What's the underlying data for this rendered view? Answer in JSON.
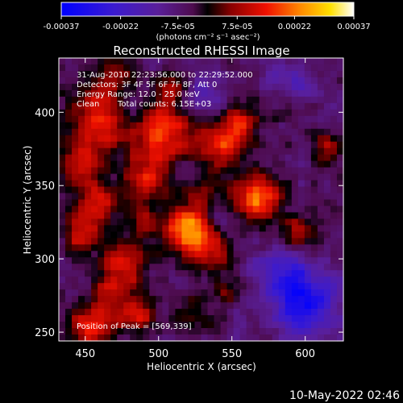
{
  "chart_data": {
    "type": "heatmap",
    "title": "Reconstructed RHESSI Image",
    "xlabel": "Heliocentric X (arcsec)",
    "ylabel": "Heliocentric Y (arcsec)",
    "xlim": [
      432,
      626
    ],
    "ylim": [
      244,
      437
    ],
    "x_ticks": [
      450,
      500,
      550,
      600
    ],
    "y_ticks": [
      250,
      300,
      350,
      400
    ],
    "colorbar": {
      "range": [
        -0.00037,
        0.00037
      ],
      "tick_values": [
        -0.00037,
        -0.00022,
        -7.5e-05,
        7.5e-05,
        0.00022,
        0.00037
      ],
      "tick_labels": [
        "-0.00037",
        "-0.00022",
        "-7.5e-05",
        "7.5e-05",
        "0.00022",
        "0.00037"
      ],
      "unit_label": "(photons cm⁻² s⁻¹ asec⁻²)"
    },
    "annotations": {
      "time_range": "31-Aug-2010 22:23:56.000 to 22:29:52.000",
      "detectors": "Detectors: 3F 4F 5F 6F 7F 8F, Att 0",
      "energy": "Energy Range: 12.0 - 25.0 keV",
      "method": "Clean",
      "counts": "Total counts: 6.15E+03",
      "peak": "Position of Peak = [569,339]"
    },
    "peak_position": [
      569,
      339
    ],
    "blobs": [
      {
        "x": 520,
        "y": 320,
        "a": 3.6,
        "s": 11
      },
      {
        "x": 567,
        "y": 342,
        "a": 3.2,
        "s": 11
      },
      {
        "x": 543,
        "y": 377,
        "a": 2.4,
        "s": 11
      },
      {
        "x": 556,
        "y": 393,
        "a": 2.0,
        "s": 8
      },
      {
        "x": 505,
        "y": 388,
        "a": 2.4,
        "s": 14
      },
      {
        "x": 492,
        "y": 356,
        "a": 2.0,
        "s": 12
      },
      {
        "x": 460,
        "y": 395,
        "a": 2.4,
        "s": 15
      },
      {
        "x": 447,
        "y": 365,
        "a": 1.8,
        "s": 10
      },
      {
        "x": 458,
        "y": 338,
        "a": 2.2,
        "s": 10
      },
      {
        "x": 447,
        "y": 318,
        "a": 1.8,
        "s": 9
      },
      {
        "x": 478,
        "y": 300,
        "a": 1.8,
        "s": 11
      },
      {
        "x": 470,
        "y": 280,
        "a": 1.6,
        "s": 10
      },
      {
        "x": 455,
        "y": 255,
        "a": 2.4,
        "s": 11
      },
      {
        "x": 485,
        "y": 262,
        "a": 1.8,
        "s": 9
      },
      {
        "x": 535,
        "y": 305,
        "a": 1.6,
        "s": 10
      },
      {
        "x": 597,
        "y": 318,
        "a": 1.8,
        "s": 8
      },
      {
        "x": 615,
        "y": 375,
        "a": 1.6,
        "s": 8
      },
      {
        "x": 532,
        "y": 345,
        "a": 1.2,
        "s": 8
      },
      {
        "x": 470,
        "y": 425,
        "a": 1.2,
        "s": 10
      },
      {
        "x": 508,
        "y": 418,
        "a": 1.2,
        "s": 8
      },
      {
        "x": 522,
        "y": 262,
        "a": 1.0,
        "s": 9
      },
      {
        "x": 548,
        "y": 278,
        "a": 0.8,
        "s": 8
      },
      {
        "x": 588,
        "y": 405,
        "a": 0.8,
        "s": 8
      },
      {
        "x": 488,
        "y": 326,
        "a": 1.2,
        "s": 8
      },
      {
        "x": 600,
        "y": 270,
        "a": -2.8,
        "s": 15
      },
      {
        "x": 585,
        "y": 290,
        "a": -1.4,
        "s": 12
      },
      {
        "x": 530,
        "y": 410,
        "a": -1.2,
        "s": 9
      },
      {
        "x": 590,
        "y": 420,
        "a": -1.2,
        "s": 10
      },
      {
        "x": 480,
        "y": 405,
        "a": -1.0,
        "s": 8
      },
      {
        "x": 540,
        "y": 330,
        "a": -0.6,
        "s": 6
      }
    ],
    "base_level": -0.7,
    "noise_level": 0.7,
    "colormap_stops": [
      [
        0.0,
        "#0000ff"
      ],
      [
        0.18,
        "#3b1bd0"
      ],
      [
        0.33,
        "#5a1f9a"
      ],
      [
        0.45,
        "#4e0c4e"
      ],
      [
        0.5,
        "#000000"
      ],
      [
        0.58,
        "#8a0000"
      ],
      [
        0.7,
        "#f01000"
      ],
      [
        0.82,
        "#ff8c00"
      ],
      [
        0.92,
        "#ffe000"
      ],
      [
        1.0,
        "#ffffff"
      ]
    ]
  },
  "footer": {
    "datetime": "10-May-2022 02:46"
  }
}
